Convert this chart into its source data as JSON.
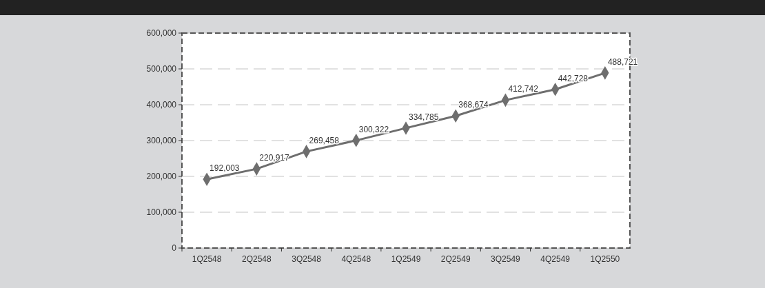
{
  "chart_data": {
    "type": "line",
    "categories": [
      "1Q2548",
      "2Q2548",
      "3Q2548",
      "4Q2548",
      "1Q2549",
      "2Q2549",
      "3Q2549",
      "4Q2549",
      "1Q2550"
    ],
    "series": [
      {
        "color": "#6e6e6e",
        "values": [
          192003,
          220917,
          269458,
          300322,
          334785,
          368674,
          412742,
          442728,
          488721
        ],
        "value_labels": [
          "192,003",
          "220,917",
          "269,458",
          "300,322",
          "334,785",
          "368,674",
          "412,742",
          "442,728",
          "488,721"
        ]
      }
    ],
    "ylim": [
      0,
      600000
    ],
    "yticks": [
      {
        "value": 0,
        "label": "0"
      },
      {
        "value": 100000,
        "label": "100,000"
      },
      {
        "value": 200000,
        "label": "200,000"
      },
      {
        "value": 300000,
        "label": "300,000"
      },
      {
        "value": 400000,
        "label": "400,000"
      },
      {
        "value": 500000,
        "label": "500,000"
      },
      {
        "value": 600000,
        "label": "600,000"
      }
    ],
    "grid": "y",
    "marker": "diamond",
    "line_style": "solid"
  }
}
